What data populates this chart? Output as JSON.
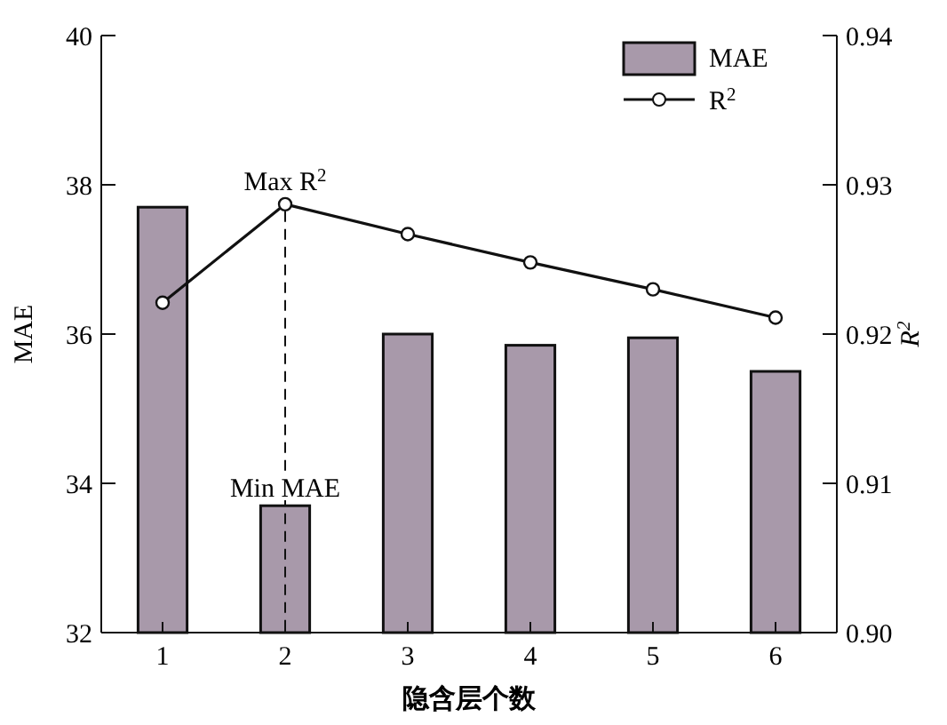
{
  "chart_data": {
    "type": "bar",
    "xlabel": "隐含层个数",
    "ylabel": "MAE",
    "y2label": "R$^{2}$",
    "categories": [
      "1",
      "2",
      "3",
      "4",
      "5",
      "6"
    ],
    "series": [
      {
        "name": "MAE",
        "color": "#a899aa",
        "values": [
          37.7,
          33.7,
          36.0,
          35.85,
          35.95,
          35.5
        ]
      },
      {
        "name": "R$^{2}$",
        "type": "line",
        "axis": "y2",
        "color": "#111111",
        "marker": "circle",
        "values": [
          0.9221,
          0.9287,
          0.9267,
          0.9248,
          0.923,
          0.9211
        ]
      }
    ],
    "ylim": [
      32,
      40
    ],
    "yticks": [
      32,
      34,
      36,
      38,
      40
    ],
    "y2lim": [
      0.9,
      0.94
    ],
    "y2ticks": [
      {
        "value": 0.9,
        "label": "0.90"
      },
      {
        "value": 0.91,
        "label": "0.91"
      },
      {
        "value": 0.92,
        "label": "0.92"
      },
      {
        "value": 0.93,
        "label": "0.93"
      },
      {
        "value": 0.94,
        "label": "0.94"
      }
    ],
    "annotations": [
      "Max R$^{2}$",
      "Min MAE"
    ],
    "legend": "top right"
  }
}
